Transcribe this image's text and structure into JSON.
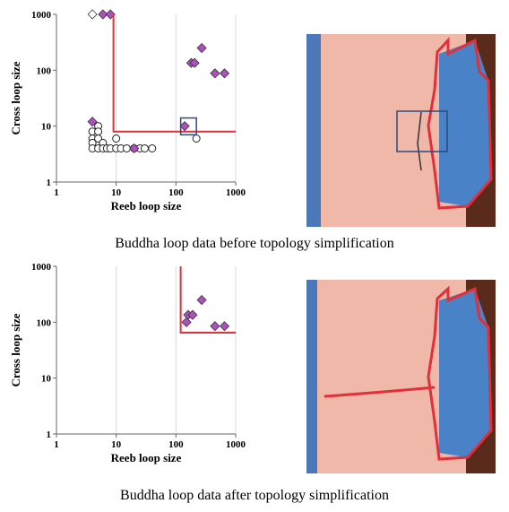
{
  "chart_data": [
    {
      "type": "scatter",
      "caption": "Buddha loop data before topology simplification",
      "xlabel": "Reeb loop size",
      "ylabel": "Cross loop size",
      "log_x": true,
      "log_y": true,
      "xlim": [
        1,
        1000
      ],
      "ylim": [
        1,
        1000
      ],
      "xticks": [
        1,
        10,
        100,
        1000
      ],
      "yticks": [
        1,
        10,
        100,
        1000
      ],
      "grid": "x",
      "series": [
        {
          "marker": "circle-open",
          "color": "#222222",
          "x": [
            4,
            4,
            4,
            4,
            5,
            5,
            5,
            5,
            6,
            6,
            7,
            8,
            10,
            10,
            12,
            15,
            20,
            25,
            30,
            40,
            220
          ],
          "values": [
            8,
            6,
            5,
            4,
            10,
            8,
            6,
            4,
            5,
            4,
            4,
            4,
            6,
            4,
            4,
            4,
            4,
            4,
            4,
            4,
            6
          ]
        },
        {
          "marker": "diamond-open",
          "color": "#222222",
          "x": [
            4
          ],
          "values": [
            1000
          ]
        },
        {
          "marker": "diamond",
          "color": "#b04fc0",
          "x": [
            6,
            8,
            4,
            20,
            140,
            180,
            205,
            270,
            450,
            650
          ],
          "values": [
            1000,
            1000,
            12,
            4,
            10,
            135,
            135,
            250,
            88,
            88
          ]
        },
        {
          "marker": "line",
          "color": "#e0303a",
          "x": [
            9,
            9,
            1000
          ],
          "values": [
            1000,
            8,
            8
          ]
        }
      ],
      "highlight_box": {
        "x": [
          120,
          220
        ],
        "values": [
          7,
          14
        ],
        "color": "#2a4a80"
      }
    },
    {
      "type": "scatter",
      "caption": "Buddha loop data after topology simplification",
      "xlabel": "Reeb loop size",
      "ylabel": "Cross loop size",
      "log_x": true,
      "log_y": true,
      "xlim": [
        1,
        1000
      ],
      "ylim": [
        1,
        1000
      ],
      "xticks": [
        1,
        10,
        100,
        1000
      ],
      "yticks": [
        1,
        10,
        100,
        1000
      ],
      "grid": "x",
      "series": [
        {
          "marker": "diamond",
          "color": "#b04fc0",
          "x": [
            150,
            160,
            190,
            270,
            450,
            650
          ],
          "values": [
            100,
            135,
            135,
            250,
            85,
            85
          ]
        },
        {
          "marker": "line",
          "color": "#e0303a",
          "x": [
            120,
            120,
            1000
          ],
          "values": [
            1000,
            65,
            65
          ]
        }
      ]
    }
  ]
}
